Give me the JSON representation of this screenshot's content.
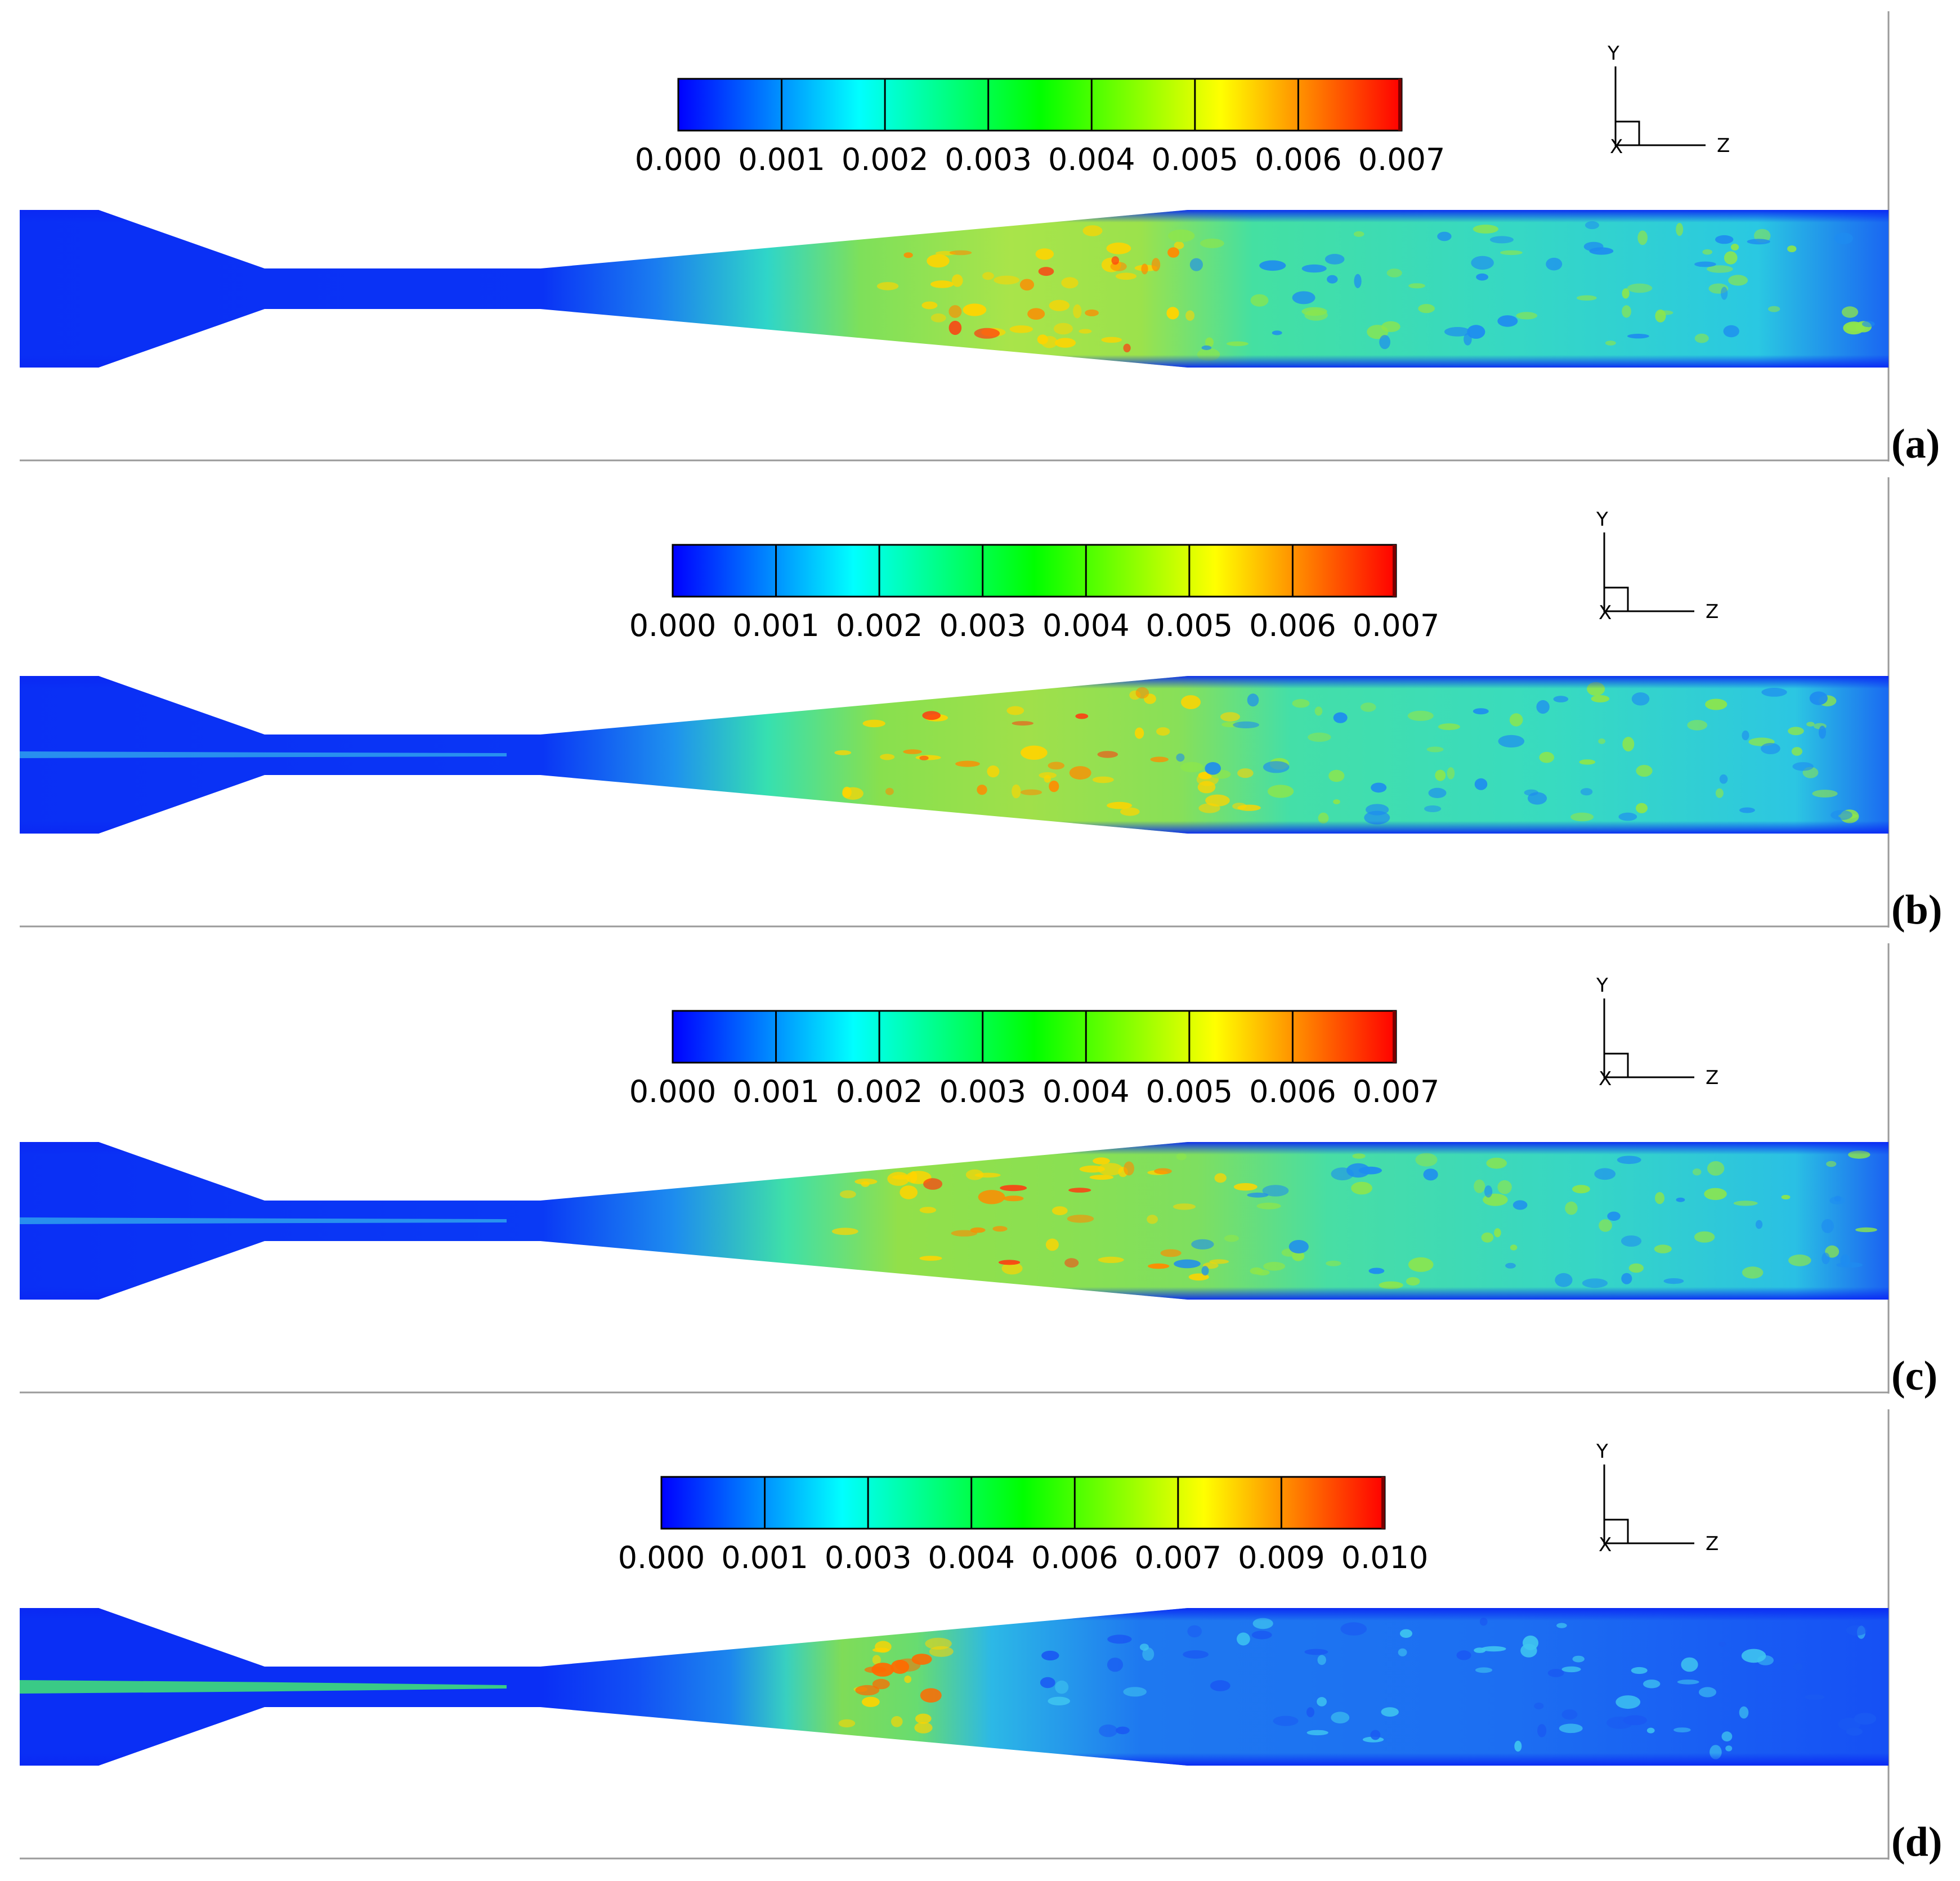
{
  "panels": [
    {
      "label": "(a)",
      "colorbar_ticks": [
        "0.000",
        "0.001",
        "0.002",
        "0.003",
        "0.004",
        "0.005",
        "0.006",
        "0.007"
      ],
      "axis_labels": {
        "y": "Y",
        "z": "Z",
        "x": "X"
      }
    },
    {
      "label": "(b)",
      "colorbar_ticks": [
        "0.000",
        "0.001",
        "0.002",
        "0.003",
        "0.004",
        "0.005",
        "0.006",
        "0.007"
      ],
      "axis_labels": {
        "y": "Y",
        "z": "Z",
        "x": "X"
      }
    },
    {
      "label": "(c)",
      "colorbar_ticks": [
        "0.000",
        "0.001",
        "0.002",
        "0.003",
        "0.004",
        "0.005",
        "0.006",
        "0.007"
      ],
      "axis_labels": {
        "y": "Y",
        "z": "Z",
        "x": "X"
      }
    },
    {
      "label": "(d)",
      "colorbar_ticks": [
        "0.000",
        "0.001",
        "0.003",
        "0.004",
        "0.006",
        "0.007",
        "0.009",
        "0.010"
      ],
      "axis_labels": {
        "y": "Y",
        "z": "Z",
        "x": "X"
      }
    }
  ],
  "colormap": [
    "#0000ff",
    "#0080ff",
    "#00ffff",
    "#00ff80",
    "#00ff00",
    "#80ff00",
    "#ffff00",
    "#ff8000",
    "#ff0000"
  ]
}
